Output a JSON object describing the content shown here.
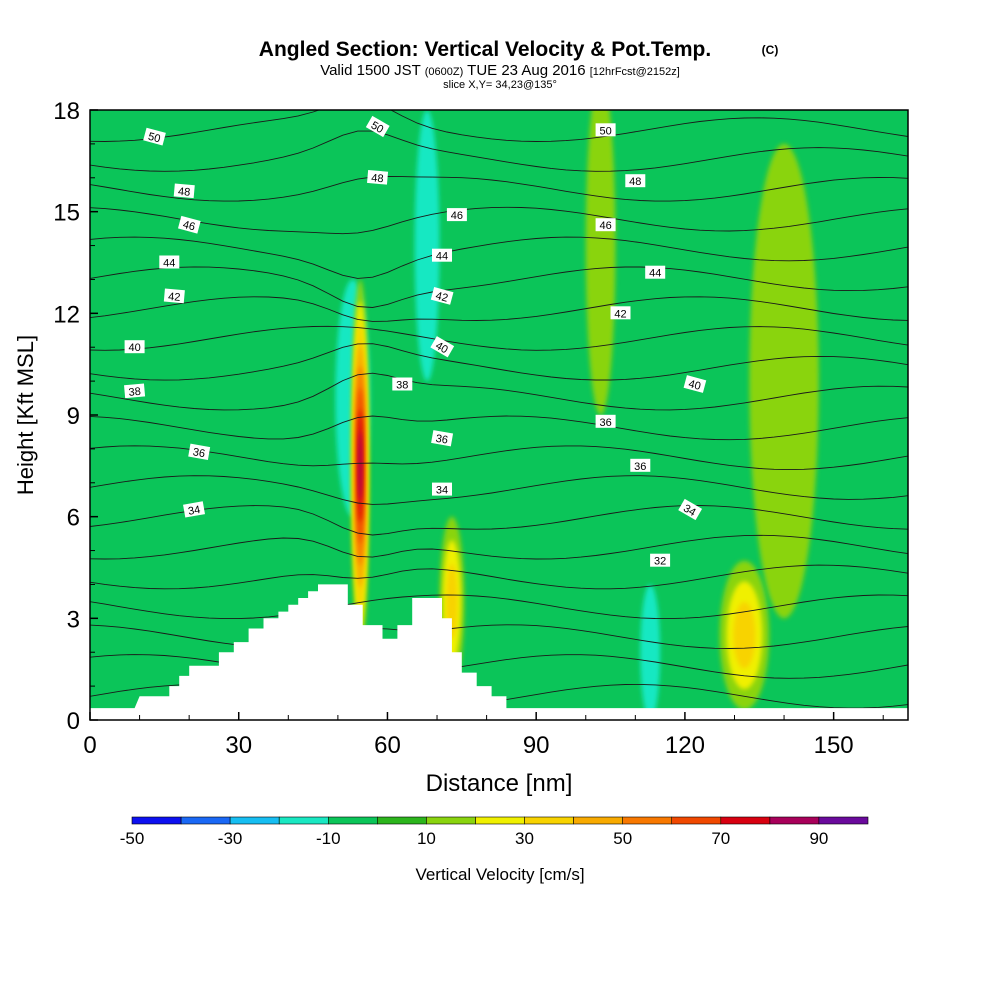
{
  "header": {
    "title": "Angled Section: Vertical Velocity & Pot.Temp.",
    "title_unit": "(C)",
    "valid_pre": "Valid 1500 JST",
    "valid_z": "(0600Z)",
    "valid_post": "TUE 23 Aug 2016",
    "fcst": "[12hrFcst@2152z]",
    "slice": "slice X,Y= 34,23@135°"
  },
  "chart_data": {
    "type": "heatmap",
    "title": "Angled Section: Vertical Velocity & Pot.Temp. (C)",
    "xlabel": "Distance [nm]",
    "ylabel": "Height [Kft MSL]",
    "xlim": [
      0,
      165
    ],
    "ylim": [
      0,
      18
    ],
    "x_ticks": [
      "0",
      "30",
      "60",
      "90",
      "120",
      "150"
    ],
    "x_tick_values": [
      0,
      30,
      60,
      90,
      120,
      150
    ],
    "y_ticks": [
      "0",
      "3",
      "6",
      "9",
      "12",
      "15",
      "18"
    ],
    "y_tick_values": [
      0,
      3,
      6,
      9,
      12,
      15,
      18
    ],
    "colorbar": {
      "label": "Vertical Velocity [cm/s]",
      "levels": [
        -50,
        -40,
        -30,
        -20,
        -10,
        0,
        10,
        20,
        30,
        40,
        50,
        60,
        70,
        80,
        90,
        100
      ],
      "colors": [
        "#0d10f0",
        "#1a68f5",
        "#16bef2",
        "#19e8c2",
        "#0bc559",
        "#2cb51c",
        "#8ad40f",
        "#f0f000",
        "#f8d300",
        "#f8aa00",
        "#f87800",
        "#f04800",
        "#d80010",
        "#a8005a",
        "#6a0a9c"
      ],
      "tick_labels": [
        "-50",
        "-30",
        "-10",
        "10",
        "30",
        "50",
        "70",
        "90"
      ],
      "tick_values": [
        -50,
        -30,
        -10,
        10,
        30,
        50,
        70,
        90
      ]
    },
    "background_color": "#0bc559",
    "velocity_features": [
      {
        "x": 54.5,
        "y": 7.5,
        "rx": 1.8,
        "ry": 5.5,
        "value": 80
      },
      {
        "x": 53.0,
        "y": 9.5,
        "rx": 3.5,
        "ry": 3.5,
        "value": -15
      },
      {
        "x": 132.0,
        "y": 2.5,
        "rx": 5.0,
        "ry": 2.2,
        "value": 35
      },
      {
        "x": 73.0,
        "y": 3.5,
        "rx": 2.5,
        "ry": 2.5,
        "value": 30
      },
      {
        "x": 68.0,
        "y": 14.0,
        "rx": 2.5,
        "ry": 4.0,
        "value": -15
      },
      {
        "x": 113.0,
        "y": 2.0,
        "rx": 2.0,
        "ry": 2.0,
        "value": -15
      },
      {
        "x": 140.0,
        "y": 10.0,
        "rx": 7.0,
        "ry": 7.0,
        "value": 15
      },
      {
        "x": 103.0,
        "y": 14.0,
        "rx": 3.0,
        "ry": 5.0,
        "value": 10
      }
    ],
    "terrain": [
      [
        0,
        0.35
      ],
      [
        9,
        0.35
      ],
      [
        10,
        0.7
      ],
      [
        16,
        0.7
      ],
      [
        16,
        1.0
      ],
      [
        18,
        1.0
      ],
      [
        18,
        1.3
      ],
      [
        20,
        1.3
      ],
      [
        20,
        1.6
      ],
      [
        26,
        1.6
      ],
      [
        26,
        2.0
      ],
      [
        29,
        2.0
      ],
      [
        29,
        2.3
      ],
      [
        32,
        2.3
      ],
      [
        32,
        2.7
      ],
      [
        35,
        2.7
      ],
      [
        35,
        3.0
      ],
      [
        38,
        3.0
      ],
      [
        38,
        3.2
      ],
      [
        40,
        3.2
      ],
      [
        40,
        3.4
      ],
      [
        42,
        3.4
      ],
      [
        42,
        3.6
      ],
      [
        44,
        3.6
      ],
      [
        44,
        3.8
      ],
      [
        46,
        3.8
      ],
      [
        46,
        4.0
      ],
      [
        52,
        4.0
      ],
      [
        52,
        3.4
      ],
      [
        55,
        3.4
      ],
      [
        55,
        2.8
      ],
      [
        59,
        2.8
      ],
      [
        59,
        2.4
      ],
      [
        62,
        2.4
      ],
      [
        62,
        2.8
      ],
      [
        65,
        2.8
      ],
      [
        65,
        3.6
      ],
      [
        71,
        3.6
      ],
      [
        71,
        3.0
      ],
      [
        73,
        3.0
      ],
      [
        73,
        2.0
      ],
      [
        75,
        2.0
      ],
      [
        75,
        1.4
      ],
      [
        78,
        1.4
      ],
      [
        78,
        1.0
      ],
      [
        81,
        1.0
      ],
      [
        81,
        0.7
      ],
      [
        84,
        0.7
      ],
      [
        84,
        0.35
      ],
      [
        165,
        0.35
      ]
    ],
    "isotherms": [
      {
        "value": 32,
        "label_x": 115,
        "label_y": 4.7
      }
    ],
    "contour_labels": [
      {
        "text": "50",
        "x": 13,
        "y": 17.2,
        "rot": 15
      },
      {
        "text": "48",
        "x": 19,
        "y": 15.6,
        "rot": 5
      },
      {
        "text": "46",
        "x": 20,
        "y": 14.6,
        "rot": 15
      },
      {
        "text": "44",
        "x": 16,
        "y": 13.5,
        "rot": 0
      },
      {
        "text": "42",
        "x": 17,
        "y": 12.5,
        "rot": 5
      },
      {
        "text": "40",
        "x": 9,
        "y": 11.0,
        "rot": 0
      },
      {
        "text": "38",
        "x": 9,
        "y": 9.7,
        "rot": -5
      },
      {
        "text": "36",
        "x": 22,
        "y": 7.9,
        "rot": 10
      },
      {
        "text": "34",
        "x": 21,
        "y": 6.2,
        "rot": -10
      },
      {
        "text": "50",
        "x": 58,
        "y": 17.5,
        "rot": 30
      },
      {
        "text": "48",
        "x": 58,
        "y": 16.0,
        "rot": 5
      },
      {
        "text": "46",
        "x": 74,
        "y": 14.9,
        "rot": 0
      },
      {
        "text": "44",
        "x": 71,
        "y": 13.7,
        "rot": 0
      },
      {
        "text": "42",
        "x": 71,
        "y": 12.5,
        "rot": 15
      },
      {
        "text": "40",
        "x": 71,
        "y": 11.0,
        "rot": 30
      },
      {
        "text": "38",
        "x": 63,
        "y": 9.9,
        "rot": 0
      },
      {
        "text": "36",
        "x": 71,
        "y": 8.3,
        "rot": 10
      },
      {
        "text": "34",
        "x": 71,
        "y": 6.8,
        "rot": 0
      },
      {
        "text": "50",
        "x": 104,
        "y": 17.4,
        "rot": 0
      },
      {
        "text": "48",
        "x": 110,
        "y": 15.9,
        "rot": 0
      },
      {
        "text": "46",
        "x": 104,
        "y": 14.6,
        "rot": 0
      },
      {
        "text": "44",
        "x": 114,
        "y": 13.2,
        "rot": 0
      },
      {
        "text": "42",
        "x": 107,
        "y": 12.0,
        "rot": 0
      },
      {
        "text": "40",
        "x": 122,
        "y": 9.9,
        "rot": 15
      },
      {
        "text": "36",
        "x": 104,
        "y": 8.8,
        "rot": 0
      },
      {
        "text": "36",
        "x": 111,
        "y": 7.5,
        "rot": 0
      },
      {
        "text": "34",
        "x": 121,
        "y": 6.2,
        "rot": 30
      },
      {
        "text": "32",
        "x": 115,
        "y": 4.7,
        "rot": 0
      }
    ]
  }
}
